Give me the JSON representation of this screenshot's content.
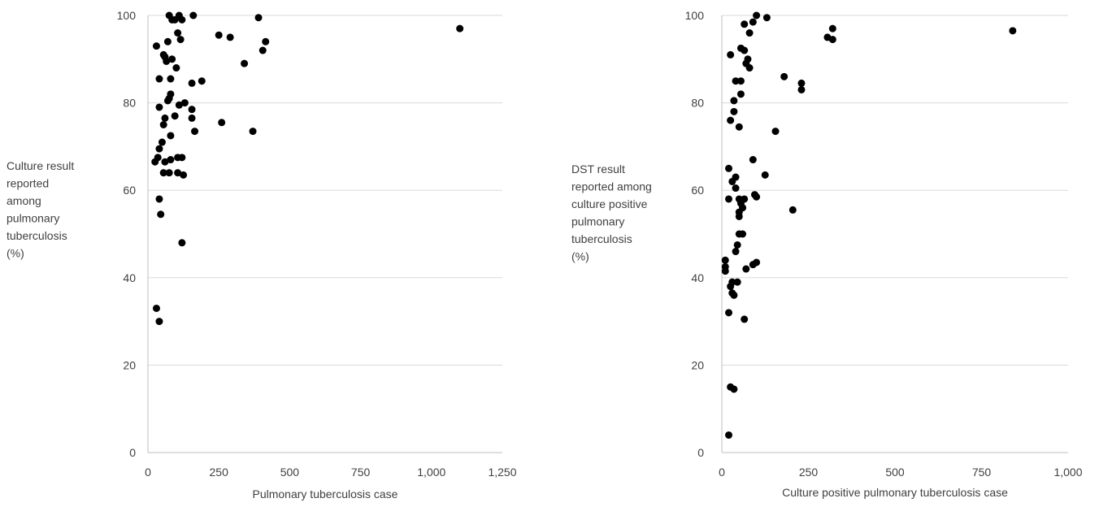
{
  "chart_data": [
    {
      "type": "scatter",
      "title": "",
      "xlabel": "Pulmonary tuberculosis case",
      "ylabel_lines": [
        "Culture result",
        "reported",
        "among",
        "pulmonary",
        "tuberculosis",
        "(%)"
      ],
      "xlim": [
        0,
        1250
      ],
      "ylim": [
        0,
        100
      ],
      "xticks": [
        0,
        250,
        500,
        750,
        1000,
        1250
      ],
      "xtick_labels": [
        "0",
        "250",
        "500",
        "750",
        "1,000",
        "1,250"
      ],
      "yticks": [
        0,
        20,
        40,
        60,
        80,
        100
      ],
      "ytick_labels": [
        "0",
        "20",
        "40",
        "60",
        "80",
        "100"
      ],
      "grid": "horizontal",
      "legend": "none",
      "marker_color": "#000000",
      "points": [
        [
          75,
          100
        ],
        [
          110,
          100
        ],
        [
          160,
          100
        ],
        [
          95,
          99
        ],
        [
          120,
          99
        ],
        [
          85,
          99
        ],
        [
          390,
          99.5
        ],
        [
          1100,
          97
        ],
        [
          105,
          96
        ],
        [
          250,
          95.5
        ],
        [
          290,
          95
        ],
        [
          415,
          94
        ],
        [
          115,
          94.5
        ],
        [
          70,
          94
        ],
        [
          30,
          93
        ],
        [
          405,
          92
        ],
        [
          55,
          91
        ],
        [
          60,
          90.5
        ],
        [
          85,
          90
        ],
        [
          65,
          89.5
        ],
        [
          340,
          89
        ],
        [
          100,
          88
        ],
        [
          190,
          85
        ],
        [
          155,
          84.5
        ],
        [
          40,
          85.5
        ],
        [
          80,
          85.5
        ],
        [
          80,
          82
        ],
        [
          75,
          81
        ],
        [
          70,
          80.5
        ],
        [
          110,
          79.5
        ],
        [
          130,
          80
        ],
        [
          40,
          79
        ],
        [
          155,
          78.5
        ],
        [
          95,
          77
        ],
        [
          60,
          76.5
        ],
        [
          155,
          76.5
        ],
        [
          55,
          75
        ],
        [
          260,
          75.5
        ],
        [
          165,
          73.5
        ],
        [
          370,
          73.5
        ],
        [
          80,
          72.5
        ],
        [
          50,
          71
        ],
        [
          40,
          69.5
        ],
        [
          35,
          67.5
        ],
        [
          25,
          66.5
        ],
        [
          60,
          66.5
        ],
        [
          80,
          67
        ],
        [
          105,
          67.5
        ],
        [
          120,
          67.5
        ],
        [
          55,
          64
        ],
        [
          75,
          64
        ],
        [
          105,
          64
        ],
        [
          125,
          63.5
        ],
        [
          40,
          58
        ],
        [
          45,
          54.5
        ],
        [
          120,
          48
        ],
        [
          30,
          33
        ],
        [
          40,
          30
        ]
      ]
    },
    {
      "type": "scatter",
      "title": "",
      "xlabel": "Culture positive pulmonary tuberculosis case",
      "ylabel_lines": [
        "DST result",
        "reported among",
        "culture positive",
        "pulmonary",
        "tuberculosis",
        "(%)"
      ],
      "xlim": [
        0,
        1000
      ],
      "ylim": [
        0,
        100
      ],
      "xticks": [
        0,
        250,
        500,
        750,
        1000
      ],
      "xtick_labels": [
        "0",
        "250",
        "500",
        "750",
        "1,000"
      ],
      "yticks": [
        0,
        20,
        40,
        60,
        80,
        100
      ],
      "ytick_labels": [
        "0",
        "20",
        "40",
        "60",
        "80",
        "100"
      ],
      "grid": "horizontal",
      "legend": "none",
      "marker_color": "#000000",
      "points": [
        [
          100,
          100
        ],
        [
          130,
          99.5
        ],
        [
          90,
          98.5
        ],
        [
          65,
          98
        ],
        [
          320,
          97
        ],
        [
          840,
          96.5
        ],
        [
          80,
          96
        ],
        [
          305,
          95
        ],
        [
          320,
          94.5
        ],
        [
          55,
          92.5
        ],
        [
          65,
          92
        ],
        [
          25,
          91
        ],
        [
          75,
          90
        ],
        [
          70,
          89
        ],
        [
          80,
          88
        ],
        [
          180,
          86
        ],
        [
          40,
          85
        ],
        [
          55,
          85
        ],
        [
          230,
          84.5
        ],
        [
          230,
          83
        ],
        [
          55,
          82
        ],
        [
          35,
          80.5
        ],
        [
          35,
          78
        ],
        [
          25,
          76
        ],
        [
          50,
          74.5
        ],
        [
          155,
          73.5
        ],
        [
          90,
          67
        ],
        [
          20,
          65
        ],
        [
          125,
          63.5
        ],
        [
          40,
          63
        ],
        [
          30,
          62
        ],
        [
          40,
          60.5
        ],
        [
          95,
          59
        ],
        [
          100,
          58.5
        ],
        [
          20,
          58
        ],
        [
          50,
          58
        ],
        [
          65,
          58
        ],
        [
          55,
          57
        ],
        [
          60,
          56
        ],
        [
          50,
          55
        ],
        [
          50,
          54
        ],
        [
          205,
          55.5
        ],
        [
          50,
          50
        ],
        [
          60,
          50
        ],
        [
          45,
          47.5
        ],
        [
          40,
          46
        ],
        [
          10,
          44
        ],
        [
          100,
          43.5
        ],
        [
          90,
          43
        ],
        [
          10,
          42.5
        ],
        [
          70,
          42
        ],
        [
          10,
          41.5
        ],
        [
          30,
          39
        ],
        [
          45,
          39
        ],
        [
          25,
          38
        ],
        [
          30,
          36.5
        ],
        [
          35,
          36
        ],
        [
          20,
          32
        ],
        [
          65,
          30.5
        ],
        [
          25,
          15
        ],
        [
          35,
          14.5
        ],
        [
          20,
          4
        ]
      ]
    }
  ]
}
